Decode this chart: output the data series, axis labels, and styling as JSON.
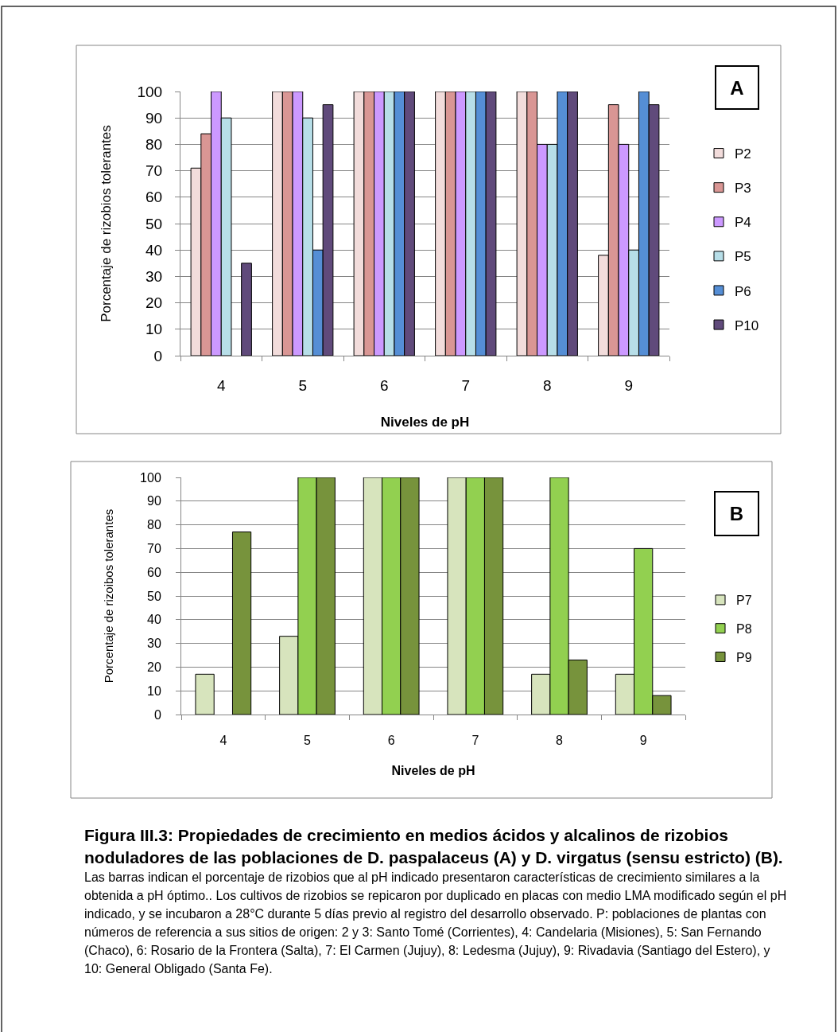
{
  "chart_data": [
    {
      "type": "bar",
      "xlabel": "Niveles de pH",
      "ylabel": "Porcentaje de rizobios tolerantes",
      "categories": [
        "4",
        "5",
        "6",
        "7",
        "8",
        "9"
      ],
      "series": [
        {
          "name": "P2",
          "color": "#f2dcdb",
          "values": [
            71,
            100,
            100,
            100,
            100,
            38
          ]
        },
        {
          "name": "P3",
          "color": "#d99694",
          "values": [
            84,
            100,
            100,
            100,
            100,
            95
          ]
        },
        {
          "name": "P4",
          "color": "#cc99ff",
          "values": [
            100,
            100,
            100,
            100,
            80,
            80
          ]
        },
        {
          "name": "P5",
          "color": "#b7dee8",
          "values": [
            90,
            90,
            100,
            100,
            80,
            40
          ]
        },
        {
          "name": "P6",
          "color": "#558ed5",
          "values": [
            null,
            40,
            100,
            100,
            100,
            100
          ]
        },
        {
          "name": "P10",
          "color": "#604a7b",
          "values": [
            35,
            95,
            100,
            100,
            100,
            95
          ]
        }
      ],
      "ylim": [
        0,
        100
      ],
      "yticks": [
        0,
        10,
        20,
        30,
        40,
        50,
        60,
        70,
        80,
        90,
        100
      ],
      "grid": "y",
      "legend": "right",
      "annotations": [
        "A"
      ]
    },
    {
      "type": "bar",
      "xlabel": "Niveles de pH",
      "ylabel": "Porcentaje de rizoibos tolerantes",
      "categories": [
        "4",
        "5",
        "6",
        "7",
        "8",
        "9"
      ],
      "series": [
        {
          "name": "P7",
          "color": "#d7e4bd",
          "values": [
            17,
            33,
            100,
            100,
            17,
            17
          ]
        },
        {
          "name": "P8",
          "color": "#92d050",
          "values": [
            null,
            100,
            100,
            100,
            100,
            70
          ]
        },
        {
          "name": "P9",
          "color": "#77933c",
          "values": [
            77,
            100,
            100,
            100,
            23,
            8
          ]
        }
      ],
      "ylim": [
        0,
        100
      ],
      "yticks": [
        0,
        10,
        20,
        30,
        40,
        50,
        60,
        70,
        80,
        90,
        100
      ],
      "grid": "y",
      "legend": "right",
      "annotations": [
        "B",
        "Figura III.3: Propiedades de crecimiento en medios ácidos y alcalinos de rizobios noduladores de las poblaciones de D. paspalaceus (A) y D. virgatus (sensu estricto) (B).",
        "Las barras indican el porcentaje de rizobios que al pH indicado presentaron características de crecimiento similares a la obtenida a pH óptimo.. Los cultivos de rizobios se repicaron por duplicado en placas con medio LMA modificado según el pH indicado, y se incubaron a 28°C durante 5 días previo al registro del desarrollo observado. P: poblaciones de plantas con números de referencia a sus sitios de origen: 2 y 3: Santo Tomé (Corrientes), 4: Candelaria (Misiones), 5: San Fernando (Chaco), 6: Rosario de la Frontera (Salta), 7: El Carmen (Jujuy), 8: Ledesma (Jujuy), 9: Rivadavia (Santiago del Estero), y 10: General Obligado (Santa Fe)."
      ]
    }
  ]
}
